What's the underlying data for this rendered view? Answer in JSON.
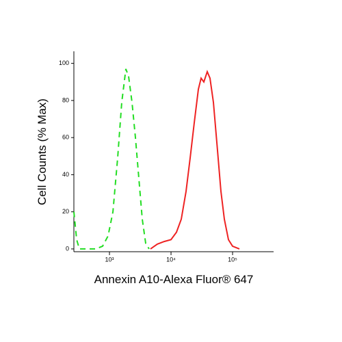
{
  "chart_data": {
    "type": "line",
    "x_label": "Annexin A10-Alexa Fluor® 647",
    "y_label": "Cell Counts (% Max)",
    "xscale": "log",
    "xlim": [
      264,
      464000
    ],
    "ylim": [
      -1.5,
      106.5
    ],
    "xticks": [
      {
        "value": 1000,
        "label": "10³"
      },
      {
        "value": 10000,
        "label": "10⁴"
      },
      {
        "value": 100000,
        "label": "10⁵"
      }
    ],
    "yticks": [
      0,
      20,
      40,
      60,
      80,
      100
    ],
    "series": [
      {
        "color": "#22dd22",
        "linestyle": "dashed",
        "x": [
          264,
          293,
          324,
          600,
          774,
          950,
          1137,
          1359,
          1585,
          1848,
          2047,
          2326,
          2643,
          3005,
          3415,
          3881,
          4410
        ],
        "values": [
          20,
          5,
          0,
          0,
          1.5,
          7,
          20,
          49,
          79,
          97,
          93,
          79,
          60,
          38,
          16,
          3,
          0
        ]
      },
      {
        "color": "#ee2222",
        "linestyle": "solid",
        "x": [
          4642,
          5995,
          7743,
          10000,
          12270,
          14680,
          17550,
          20470,
          23870,
          27830,
          30830,
          34150,
          38800,
          42990,
          48860,
          56980,
          64750,
          73560,
          85770,
          100000,
          129200
        ],
        "values": [
          0,
          2.6,
          4,
          5,
          9,
          16,
          31,
          49,
          68,
          86,
          92,
          90,
          95.5,
          92,
          79,
          53,
          31,
          16,
          5,
          1.5,
          0
        ]
      }
    ]
  }
}
